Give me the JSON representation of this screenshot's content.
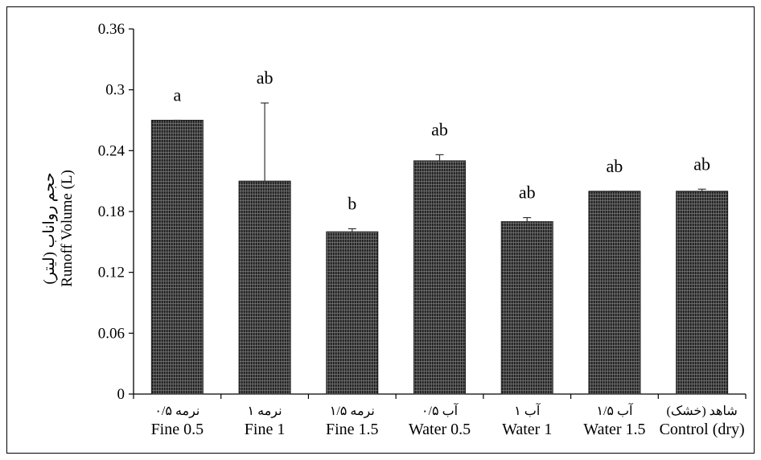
{
  "chart_data": {
    "type": "bar",
    "ylabel_fa": "حجم رواناب (لیتر)",
    "ylabel_en": "Runoff Volume (L)",
    "ylim": [
      0,
      0.36
    ],
    "yticks": [
      "0",
      "0.06",
      "0.12",
      "0.18",
      "0.24",
      "0.3",
      "0.36"
    ],
    "ytick_values": [
      0,
      0.06,
      0.12,
      0.18,
      0.24,
      0.3,
      0.36
    ],
    "categories": [
      {
        "fa": "نرمه ۰/۵",
        "en": "Fine 0.5"
      },
      {
        "fa": "نرمه ۱",
        "en": "Fine 1"
      },
      {
        "fa": "نرمه ۱/۵",
        "en": "Fine 1.5"
      },
      {
        "fa": "آب ۰/۵",
        "en": "Water 0.5"
      },
      {
        "fa": "آب ۱",
        "en": "Water 1"
      },
      {
        "fa": "آب ۱/۵",
        "en": "Water 1.5"
      },
      {
        "fa": "شاهد (خشک)",
        "en": "Control (dry)"
      }
    ],
    "values": [
      0.27,
      0.21,
      0.16,
      0.23,
      0.17,
      0.2,
      0.2
    ],
    "errors": [
      0.0,
      0.077,
      0.003,
      0.006,
      0.004,
      0.0,
      0.002
    ],
    "significance": [
      "a",
      "ab",
      "b",
      "ab",
      "ab",
      "ab",
      "ab"
    ],
    "grid": false,
    "bar_fill": "hatched dark grey"
  }
}
